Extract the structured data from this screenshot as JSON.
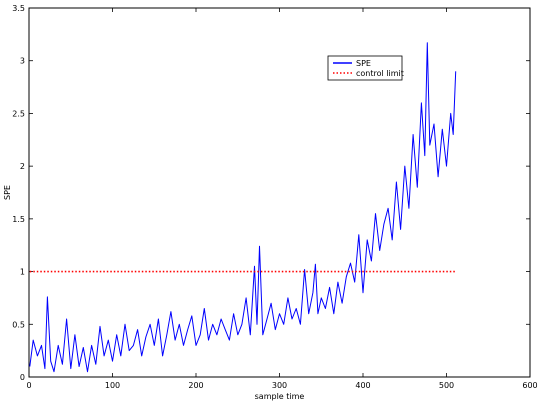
{
  "chart_data": {
    "type": "line",
    "title": "",
    "xlabel": "sample time",
    "ylabel": "SPE",
    "xlim": [
      0,
      600
    ],
    "ylim": [
      0,
      3.5
    ],
    "xticks": [
      0,
      100,
      200,
      300,
      400,
      500,
      600
    ],
    "yticks": [
      0,
      0.5,
      1,
      1.5,
      2,
      2.5,
      3,
      3.5
    ],
    "xtick_labels": [
      "0",
      "100",
      "200",
      "300",
      "400",
      "500",
      "600"
    ],
    "ytick_labels": [
      "0",
      "0.5",
      "1",
      "1.5",
      "2",
      "2.5",
      "3",
      "3.5"
    ],
    "grid": false,
    "legend": {
      "position": "top-right",
      "entries": [
        "SPE",
        "control limit"
      ]
    },
    "series": [
      {
        "name": "SPE",
        "color": "#0000ff",
        "style": "solid",
        "x": [
          1,
          5,
          10,
          15,
          19,
          22,
          26,
          30,
          35,
          40,
          45,
          50,
          55,
          60,
          65,
          70,
          75,
          80,
          85,
          90,
          95,
          100,
          105,
          110,
          115,
          120,
          125,
          130,
          135,
          140,
          145,
          150,
          155,
          160,
          165,
          170,
          175,
          180,
          185,
          190,
          195,
          200,
          205,
          210,
          215,
          220,
          225,
          230,
          235,
          240,
          245,
          250,
          255,
          260,
          265,
          270,
          273,
          276,
          280,
          285,
          290,
          295,
          300,
          305,
          310,
          315,
          320,
          325,
          330,
          335,
          340,
          343,
          346,
          350,
          355,
          360,
          365,
          370,
          375,
          380,
          385,
          390,
          395,
          400,
          405,
          410,
          415,
          420,
          425,
          430,
          435,
          440,
          445,
          450,
          455,
          460,
          465,
          470,
          474,
          477,
          480,
          485,
          490,
          495,
          500,
          505,
          508,
          511
        ],
        "y": [
          0.1,
          0.35,
          0.2,
          0.3,
          0.08,
          0.76,
          0.15,
          0.05,
          0.3,
          0.12,
          0.55,
          0.08,
          0.4,
          0.1,
          0.28,
          0.05,
          0.3,
          0.12,
          0.48,
          0.2,
          0.35,
          0.15,
          0.4,
          0.2,
          0.5,
          0.25,
          0.3,
          0.45,
          0.2,
          0.38,
          0.5,
          0.3,
          0.55,
          0.2,
          0.4,
          0.62,
          0.35,
          0.5,
          0.3,
          0.45,
          0.58,
          0.3,
          0.4,
          0.65,
          0.35,
          0.5,
          0.4,
          0.55,
          0.45,
          0.35,
          0.6,
          0.4,
          0.5,
          0.75,
          0.4,
          1.05,
          0.5,
          1.24,
          0.4,
          0.55,
          0.7,
          0.45,
          0.6,
          0.5,
          0.75,
          0.55,
          0.65,
          0.5,
          1.02,
          0.6,
          0.8,
          1.07,
          0.6,
          0.75,
          0.65,
          0.85,
          0.6,
          0.9,
          0.7,
          0.95,
          1.08,
          0.9,
          1.35,
          0.8,
          1.3,
          1.1,
          1.55,
          1.2,
          1.45,
          1.6,
          1.3,
          1.85,
          1.4,
          2.0,
          1.6,
          2.3,
          1.8,
          2.6,
          2.1,
          3.17,
          2.2,
          2.4,
          1.9,
          2.35,
          2.0,
          2.5,
          2.3,
          2.9
        ]
      },
      {
        "name": "control limit",
        "color": "#ff0000",
        "style": "dotted",
        "x": [
          1,
          511
        ],
        "y": [
          1,
          1
        ]
      }
    ]
  }
}
